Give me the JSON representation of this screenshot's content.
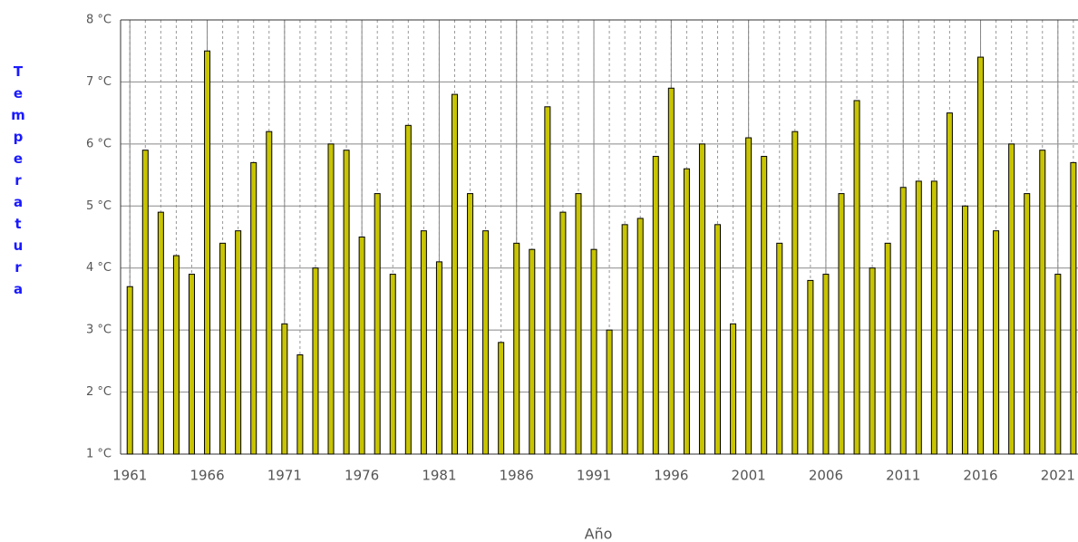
{
  "chart_data": {
    "type": "bar",
    "x": [
      1961,
      1962,
      1963,
      1964,
      1965,
      1966,
      1967,
      1968,
      1969,
      1970,
      1971,
      1972,
      1973,
      1974,
      1975,
      1976,
      1977,
      1978,
      1979,
      1980,
      1981,
      1982,
      1983,
      1984,
      1985,
      1986,
      1987,
      1988,
      1989,
      1990,
      1991,
      1992,
      1993,
      1994,
      1995,
      1996,
      1997,
      1998,
      1999,
      2000,
      2001,
      2002,
      2003,
      2004,
      2005,
      2006,
      2007,
      2008,
      2009,
      2010,
      2011,
      2012,
      2013,
      2014,
      2015,
      2016,
      2017,
      2018,
      2019,
      2020,
      2021,
      2022
    ],
    "values": [
      3.7,
      5.9,
      4.9,
      4.2,
      3.9,
      7.5,
      4.4,
      4.6,
      5.7,
      6.2,
      3.1,
      2.6,
      4.0,
      6.0,
      5.9,
      4.5,
      5.2,
      3.9,
      6.3,
      4.6,
      4.1,
      6.8,
      5.2,
      4.6,
      2.8,
      4.4,
      4.3,
      6.6,
      4.9,
      5.2,
      4.3,
      3.0,
      4.7,
      4.8,
      5.8,
      6.9,
      5.6,
      6.0,
      4.7,
      3.1,
      6.1,
      5.8,
      4.4,
      6.2,
      3.8,
      3.9,
      5.2,
      6.7,
      4.0,
      4.4,
      5.3,
      5.4,
      5.4,
      6.5,
      5.0,
      7.4,
      4.6,
      6.0,
      5.2,
      5.9,
      3.9,
      5.7
    ],
    "color": "#c8c400",
    "xlim": [
      1960.4,
      2022.3
    ],
    "xticks": [
      1961,
      1966,
      1971,
      1976,
      1981,
      1986,
      1991,
      1996,
      2001,
      2006,
      2011,
      2016,
      2021
    ],
    "ylim": [
      1,
      8
    ],
    "yticks": [
      {
        "value": 1,
        "label": "1 °C"
      },
      {
        "value": 2,
        "label": "2 °C"
      },
      {
        "value": 3,
        "label": "3 °C"
      },
      {
        "value": 4,
        "label": "4 °C"
      },
      {
        "value": 5,
        "label": "5 °C"
      },
      {
        "value": 6,
        "label": "6 °C"
      },
      {
        "value": 7,
        "label": "7 °C"
      },
      {
        "value": 8,
        "label": "8 °C"
      }
    ],
    "ylabel": "Temperatura",
    "xlabel": "Año",
    "grid": true
  }
}
